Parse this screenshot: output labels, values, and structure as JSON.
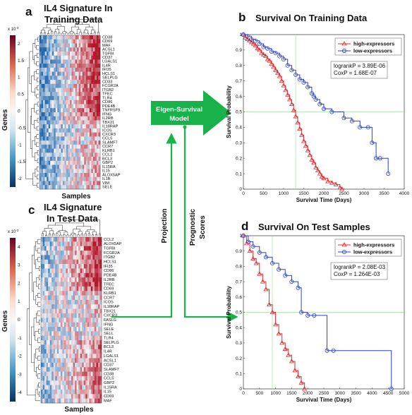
{
  "panel_a": {
    "label": "a",
    "title_line1": "IL4 Signature In",
    "title_line2": "Training Data",
    "ylabel": "Genes",
    "xlabel": "Samples",
    "colorbar_exp": "x 10",
    "colorbar_exp_sup": "-3",
    "colorbar_ticks": [
      "2",
      "1.5",
      "1",
      "0.5",
      "0",
      "-0.5",
      "-1",
      "-1.5",
      "-2"
    ],
    "genes": [
      "CD38",
      "CD69",
      "MAF",
      "ACSL1",
      "TGFBI",
      "CD37",
      "LGALS1",
      "IL4R",
      "IFI35",
      "HCLS1",
      "SELPLG",
      "CD33",
      "FCGR2A",
      "ITGB2",
      "TFEC",
      "TLR4",
      "CD86",
      "PDE4B",
      "TNFRSF9",
      "IFNG",
      "IL2RB",
      "TBX21",
      "IL18RAP",
      "ICOS",
      "CXCR3",
      "CCL5",
      "SLAMF7",
      "CCR7",
      "KLRB1",
      "CCL2",
      "BCL3",
      "GBP2",
      "IL15RA",
      "IL15",
      "ALOX5AP",
      "IL1B",
      "VIM",
      "SELE"
    ]
  },
  "panel_c": {
    "label": "c",
    "title_line1": "IL4 Signature",
    "title_line2": "In Test Data",
    "ylabel": "Genes",
    "xlabel": "Samples",
    "colorbar_exp": "x 10",
    "colorbar_exp_sup": "-3",
    "colorbar_ticks": [
      "4",
      "3",
      "2",
      "1",
      "0",
      "-1",
      "-2",
      "-3",
      "-4"
    ],
    "genes": [
      "CCL2",
      "ALOX5AP",
      "TGFBI",
      "FCGR2A",
      "ITGB2",
      "HCLS1",
      "IFI35",
      "CD86",
      "PDE4B",
      "IL2RB",
      "TFEC",
      "CD69",
      "KLRB1",
      "CCR7",
      "ICOS",
      "IL18RAP",
      "TBX21",
      "CXCR3",
      "FASLG",
      "IFNG",
      "SELE",
      "SELL",
      "TLR4",
      "SELPLG",
      "BCL3",
      "IL4R",
      "LGALS1",
      "ACSL1",
      "CD37",
      "SLAMF7",
      "CD38",
      "CCL5",
      "GBP2",
      "IL15RA",
      "IL15",
      "CD69",
      "MAF"
    ]
  },
  "model": {
    "label_line1": "Eigen-Survival",
    "label_line2": "Model",
    "projection": "Projection",
    "prognostic_line1": "Prognostic",
    "prognostic_line2": "Scores"
  },
  "colors": {
    "red": "#e8262b",
    "blue": "#2c3fd0",
    "arrow_green": "#18b14a",
    "grid_green": "#9ee59e",
    "heat_red": "#b2182b",
    "heat_blue": "#2166ac"
  },
  "chart_data": [
    {
      "panel": "b",
      "type": "line",
      "title": "Survival On Training Data",
      "xlabel": "Survival Time (Days)",
      "ylabel": "Survival Probability",
      "xlim": [
        0,
        4000
      ],
      "ylim": [
        0,
        1
      ],
      "xticks": [
        "0",
        "500",
        "1000",
        "1500",
        "2000",
        "2500",
        "3000",
        "3500",
        "4000"
      ],
      "yticks": [
        "0",
        "0.1",
        "0.2",
        "0.3",
        "0.4",
        "0.5",
        "0.6",
        "0.7",
        "0.8",
        "0.9",
        "1"
      ],
      "legend_position": "top-right",
      "stats": [
        "logrankP = 3.89E-06",
        "CoxP = 1.68E-07"
      ],
      "series": [
        {
          "name": "high-expressors",
          "color": "#e8262b",
          "marker": "triangle",
          "x": [
            0,
            50,
            100,
            150,
            200,
            250,
            300,
            350,
            400,
            450,
            500,
            550,
            600,
            650,
            700,
            750,
            800,
            850,
            900,
            950,
            1000,
            1050,
            1100,
            1150,
            1200,
            1250,
            1300,
            1350,
            1400,
            1450,
            1500,
            1550,
            1600,
            1650,
            1700,
            1750,
            1800,
            1850,
            1900,
            1950,
            2000,
            2100,
            2200,
            2300,
            2400,
            2450
          ],
          "y": [
            1,
            0.98,
            0.97,
            0.96,
            0.95,
            0.94,
            0.93,
            0.91,
            0.9,
            0.88,
            0.87,
            0.86,
            0.84,
            0.83,
            0.81,
            0.79,
            0.77,
            0.75,
            0.73,
            0.7,
            0.67,
            0.64,
            0.61,
            0.58,
            0.55,
            0.51,
            0.47,
            0.43,
            0.39,
            0.35,
            0.31,
            0.28,
            0.25,
            0.22,
            0.19,
            0.17,
            0.14,
            0.12,
            0.1,
            0.08,
            0.07,
            0.05,
            0.04,
            0.03,
            0.01,
            0.0
          ]
        },
        {
          "name": "low-expressors",
          "color": "#2c3fd0",
          "marker": "circle",
          "x": [
            0,
            100,
            200,
            300,
            400,
            500,
            600,
            700,
            800,
            900,
            1000,
            1100,
            1200,
            1300,
            1400,
            1500,
            1600,
            1700,
            1750,
            1800,
            1900,
            2000,
            2200,
            2500,
            2700,
            2900,
            3100,
            3200,
            3300,
            3400,
            3600
          ],
          "y": [
            1,
            0.99,
            0.97,
            0.96,
            0.94,
            0.92,
            0.91,
            0.89,
            0.88,
            0.86,
            0.84,
            0.8,
            0.77,
            0.74,
            0.71,
            0.69,
            0.66,
            0.62,
            0.6,
            0.58,
            0.55,
            0.52,
            0.5,
            0.46,
            0.44,
            0.4,
            0.4,
            0.3,
            0.2,
            0.2,
            0.1
          ]
        }
      ]
    },
    {
      "panel": "d",
      "type": "line",
      "title": "Survival On Test Samples",
      "xlabel": "Survival Time (Days)",
      "ylabel": "Survival Probability",
      "xlim": [
        0,
        5000
      ],
      "ylim": [
        0,
        1
      ],
      "xticks": [
        "0",
        "500",
        "1000",
        "1500",
        "2000",
        "2500",
        "3000",
        "3500",
        "4000",
        "4500",
        "5000"
      ],
      "yticks": [
        "0",
        "0.1",
        "0.2",
        "0.3",
        "0.4",
        "0.5",
        "0.6",
        "0.7",
        "0.8",
        "0.9",
        "1"
      ],
      "legend_position": "top-right",
      "stats": [
        "logrankP = 2.08E-03",
        "CoxP = 1.264E-03"
      ],
      "series": [
        {
          "name": "high-expressors",
          "color": "#e8262b",
          "marker": "triangle",
          "x": [
            0,
            100,
            200,
            300,
            400,
            500,
            600,
            700,
            800,
            900,
            1000,
            1100,
            1200,
            1300,
            1400,
            1500,
            1600,
            1700,
            1800,
            1900
          ],
          "y": [
            1,
            0.95,
            0.9,
            0.85,
            0.82,
            0.75,
            0.7,
            0.65,
            0.55,
            0.5,
            0.42,
            0.36,
            0.3,
            0.26,
            0.22,
            0.18,
            0.12,
            0.08,
            0.04,
            0.0
          ]
        },
        {
          "name": "low-expressors",
          "color": "#2c3fd0",
          "marker": "circle",
          "x": [
            0,
            150,
            300,
            500,
            700,
            900,
            1100,
            1300,
            1500,
            1700,
            1800,
            2000,
            2200,
            2600,
            2800,
            4600
          ],
          "y": [
            1,
            0.96,
            0.93,
            0.89,
            0.86,
            0.82,
            0.78,
            0.74,
            0.7,
            0.66,
            0.5,
            0.48,
            0.48,
            0.25,
            0.25,
            0.0
          ]
        }
      ]
    }
  ]
}
